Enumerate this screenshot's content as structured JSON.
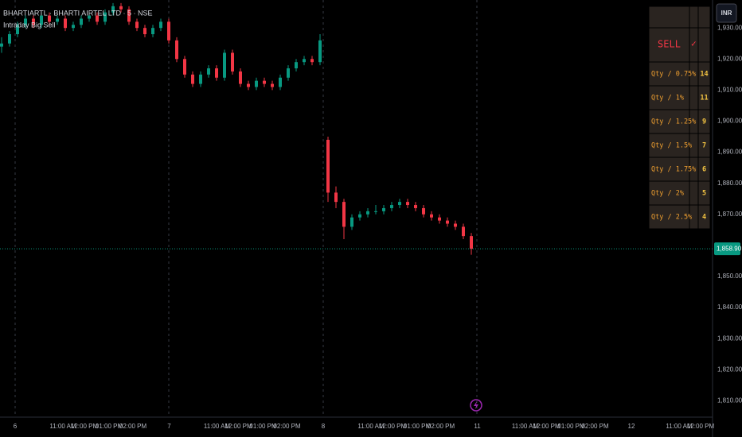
{
  "header": {
    "symbol": "BHARTIARTL · BHARTI AIRTEL LTD · 5 · NSE",
    "indicator": "Intraday Big Sell"
  },
  "price_axis": {
    "currency": "INR",
    "ylim": [
      1806,
      1939
    ],
    "ticks": [
      {
        "value": 1930,
        "label": "1,930.00"
      },
      {
        "value": 1920,
        "label": "1,920.00"
      },
      {
        "value": 1910,
        "label": "1,910.00"
      },
      {
        "value": 1900,
        "label": "1,900.00"
      },
      {
        "value": 1890,
        "label": "1,890.00"
      },
      {
        "value": 1880,
        "label": "1,880.00"
      },
      {
        "value": 1870,
        "label": "1,870.00"
      },
      {
        "value": 1850,
        "label": "1,850.00"
      },
      {
        "value": 1840,
        "label": "1,840.00"
      },
      {
        "value": 1830,
        "label": "1,830.00"
      },
      {
        "value": 1820,
        "label": "1,820.00"
      },
      {
        "value": 1810,
        "label": "1,810.00"
      }
    ],
    "last_price": {
      "value": 1858.9,
      "label": "1,858.90"
    }
  },
  "time_axis": {
    "labels": [
      "6",
      "11:00 AM",
      "12:00 PM",
      "01:00 PM",
      "02:00 PM",
      "7",
      "11:00 AM",
      "12:00 PM",
      "01:00 PM",
      "02:00 PM",
      "8",
      "11:00 AM",
      "12:00 PM",
      "01:00 PM",
      "02:00 PM",
      "11",
      "11:00 AM",
      "12:00 PM",
      "01:00 PM",
      "02:00 PM",
      "12",
      "11:00 AM",
      "12:00 PM"
    ]
  },
  "up_color": "#089981",
  "down_color": "#f23645",
  "candles": [
    [
      1924,
      1927,
      1922,
      1925
    ],
    [
      1925,
      1929,
      1924,
      1928
    ],
    [
      1928,
      1932,
      1927,
      1931
    ],
    [
      1931,
      1934,
      1930,
      1933
    ],
    [
      1933,
      1934,
      1930,
      1931
    ],
    [
      1931,
      1935,
      1930,
      1934
    ],
    [
      1934,
      1935,
      1931,
      1932
    ],
    [
      1932,
      1934,
      1931,
      1933
    ],
    [
      1933,
      1934,
      1929,
      1930
    ],
    [
      1930,
      1932,
      1929,
      1931
    ],
    [
      1931,
      1934,
      1930,
      1933
    ],
    [
      1933,
      1935,
      1932,
      1934
    ],
    [
      1934,
      1935,
      1931,
      1932
    ],
    [
      1932,
      1936,
      1931,
      1935
    ],
    [
      1935,
      1938,
      1934,
      1937
    ],
    [
      1937,
      1938,
      1935,
      1936
    ],
    [
      1936,
      1937,
      1931,
      1932
    ],
    [
      1932,
      1933,
      1929,
      1930
    ],
    [
      1930,
      1931,
      1927,
      1928
    ],
    [
      1928,
      1931,
      1927,
      1930
    ],
    [
      1930,
      1933,
      1929,
      1932
    ],
    [
      1932,
      1933,
      1925,
      1926
    ],
    [
      1926,
      1927,
      1919,
      1920
    ],
    [
      1920,
      1921,
      1914,
      1915
    ],
    [
      1915,
      1916,
      1911,
      1912
    ],
    [
      1912,
      1916,
      1911,
      1915
    ],
    [
      1915,
      1918,
      1914,
      1917
    ],
    [
      1917,
      1918,
      1913,
      1914
    ],
    [
      1914,
      1923,
      1913,
      1922
    ],
    [
      1922,
      1923,
      1915,
      1916
    ],
    [
      1916,
      1917,
      1911,
      1912
    ],
    [
      1912,
      1913,
      1910,
      1911
    ],
    [
      1911,
      1914,
      1910,
      1913
    ],
    [
      1913,
      1914,
      1911,
      1912
    ],
    [
      1912,
      1913,
      1910,
      1911
    ],
    [
      1911,
      1915,
      1910,
      1914
    ],
    [
      1914,
      1918,
      1913,
      1917
    ],
    [
      1917,
      1920,
      1916,
      1919
    ],
    [
      1919,
      1921,
      1918,
      1920
    ],
    [
      1920,
      1921,
      1918,
      1919
    ],
    [
      1919,
      1928,
      1918,
      1926
    ],
    [
      1894,
      1895,
      1874,
      1877
    ],
    [
      1877,
      1879,
      1872,
      1874
    ],
    [
      1874,
      1875,
      1862,
      1866
    ],
    [
      1866,
      1870,
      1865,
      1869
    ],
    [
      1869,
      1871,
      1868,
      1870
    ],
    [
      1870,
      1872,
      1869,
      1871
    ],
    [
      1871,
      1873,
      1870,
      1871
    ],
    [
      1871,
      1873,
      1870,
      1872
    ],
    [
      1872,
      1874,
      1871,
      1873
    ],
    [
      1873,
      1875,
      1872,
      1874
    ],
    [
      1874,
      1875,
      1872,
      1873
    ],
    [
      1873,
      1874,
      1871,
      1872
    ],
    [
      1872,
      1873,
      1869,
      1870
    ],
    [
      1870,
      1871,
      1868,
      1869
    ],
    [
      1869,
      1870,
      1867,
      1868
    ],
    [
      1868,
      1869,
      1866,
      1867
    ],
    [
      1867,
      1868,
      1865,
      1866
    ],
    [
      1866,
      1867,
      1862,
      1863
    ],
    [
      1863,
      1864,
      1857,
      1858.9
    ]
  ],
  "table": {
    "header": "SELL",
    "check": "✓",
    "rows": [
      [
        "Qty / 0.75%",
        14
      ],
      [
        "Qty / 1%",
        11
      ],
      [
        "Qty / 1.25%",
        9
      ],
      [
        "Qty / 1.5%",
        7
      ],
      [
        "Qty / 1.75%",
        6
      ],
      [
        "Qty / 2%",
        5
      ],
      [
        "Qty / 2.5%",
        4
      ]
    ]
  }
}
